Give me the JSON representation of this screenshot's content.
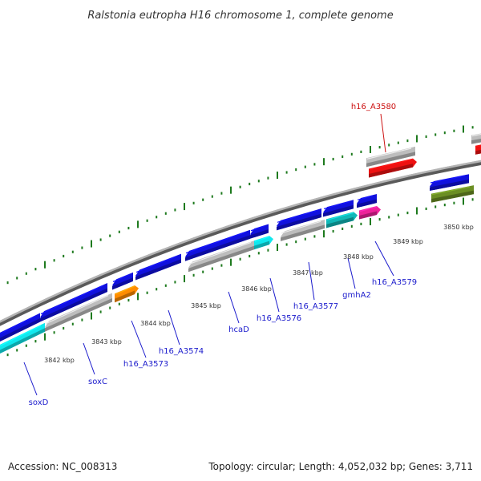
{
  "title": "Ralstonia eutropha H16 chromosome 1, complete genome",
  "accession": "Accession: NC_008313",
  "summary": "Topology: circular; Length: 4,052,032 bp; Genes: 3,711",
  "colors": {
    "backbone": "#8c8c8c",
    "tick": "#1e7a1e",
    "label_default": "#1a1acc",
    "label_highlight": "#cc1111",
    "blue": "#1111dd",
    "grey": "#bdbdbd",
    "cyan": "#11e8ee",
    "orange": "#ff8c00",
    "red": "#ee1111",
    "magenta": "#ee2299",
    "teal": "#11b8b8",
    "olive": "#6b8e23"
  },
  "kbp_labels": [
    "3842 kbp",
    "3843 kbp",
    "3844 kbp",
    "3845 kbp",
    "3846 kbp",
    "3847 kbp",
    "3848 kbp",
    "3849 kbp",
    "3850 kbp"
  ],
  "gene_labels": [
    {
      "name": "soxD",
      "highlight": false
    },
    {
      "name": "soxC",
      "highlight": false
    },
    {
      "name": "h16_A3573",
      "highlight": false
    },
    {
      "name": "h16_A3574",
      "highlight": false
    },
    {
      "name": "hcaD",
      "highlight": false
    },
    {
      "name": "h16_A3576",
      "highlight": false
    },
    {
      "name": "h16_A3577",
      "highlight": false
    },
    {
      "name": "gmhA2",
      "highlight": false
    },
    {
      "name": "h16_A3579",
      "highlight": false
    },
    {
      "name": "h16_A3580",
      "highlight": true
    }
  ]
}
